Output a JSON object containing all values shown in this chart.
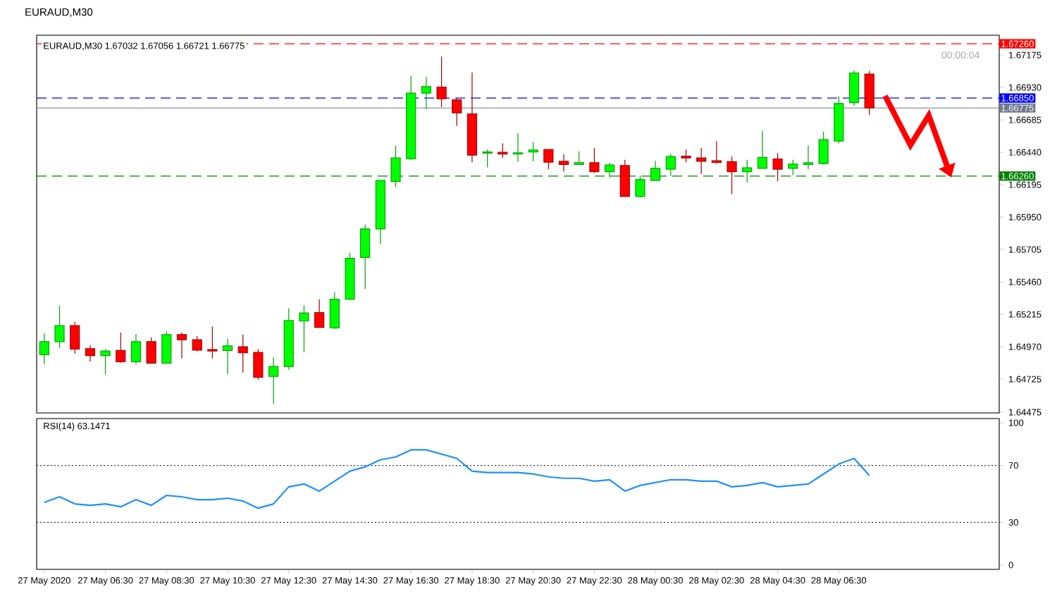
{
  "chart_data": [
    {
      "type": "candlestick",
      "title": "EURAUD,M30",
      "subtitle": "EURAUD,M30  1.67032 1.67056 1.66721 1.66775",
      "annotations": [
        "00:00:04"
      ],
      "categories": [
        null,
        null,
        null,
        null,
        null,
        null,
        null,
        null,
        null,
        null,
        null,
        null,
        null,
        null,
        null,
        null,
        null,
        null,
        null,
        null,
        null,
        null,
        null,
        null,
        null,
        null,
        null,
        null,
        null,
        null,
        null,
        null,
        null,
        null,
        null,
        null,
        null,
        null,
        null,
        null,
        null,
        null,
        null,
        null,
        null,
        null,
        null,
        null,
        null,
        null,
        null,
        null,
        null,
        null,
        null,
        null,
        null,
        null,
        null,
        null,
        null,
        null,
        null
      ],
      "ohlc": [
        [
          1.6491,
          1.6507,
          1.64839,
          1.65009
        ],
        [
          1.65009,
          1.65279,
          1.64963,
          1.6513
        ],
        [
          1.6513,
          1.65158,
          1.64917,
          1.64952
        ],
        [
          1.64956,
          1.64981,
          1.64857,
          1.64903
        ],
        [
          1.64903,
          1.64952,
          1.64761,
          1.64938
        ],
        [
          1.64942,
          1.65077,
          1.64849,
          1.64857
        ],
        [
          1.64857,
          1.65066,
          1.64839,
          1.65009
        ],
        [
          1.65009,
          1.65041,
          1.64846,
          1.64846
        ],
        [
          1.64846,
          1.65087,
          1.64846,
          1.65062
        ],
        [
          1.65062,
          1.65077,
          1.64881,
          1.65023
        ],
        [
          1.65023,
          1.65052,
          1.64935,
          1.64945
        ],
        [
          1.64949,
          1.65123,
          1.64881,
          1.64938
        ],
        [
          1.64942,
          1.6503,
          1.64761,
          1.64977
        ],
        [
          1.6497,
          1.65062,
          1.64775,
          1.64924
        ],
        [
          1.64928,
          1.64952,
          1.64722,
          1.64739
        ],
        [
          1.64746,
          1.64892,
          1.64537,
          1.64821
        ],
        [
          1.64821,
          1.65261,
          1.64796,
          1.65169
        ],
        [
          1.65165,
          1.65283,
          1.64928,
          1.65226
        ],
        [
          1.65229,
          1.65329,
          1.65116,
          1.65116
        ],
        [
          1.65112,
          1.65382,
          1.65105,
          1.65329
        ],
        [
          1.65329,
          1.6568,
          1.65325,
          1.65638
        ],
        [
          1.65645,
          1.65893,
          1.65407,
          1.65861
        ],
        [
          1.65861,
          1.66227,
          1.65744,
          1.66227
        ],
        [
          1.6622,
          1.6649,
          1.66177,
          1.66397
        ],
        [
          1.6639,
          1.67018,
          1.66383,
          1.66887
        ],
        [
          1.66887,
          1.67011,
          1.66766,
          1.66937
        ],
        [
          1.66933,
          1.67164,
          1.66781,
          1.66845
        ],
        [
          1.66837,
          1.66845,
          1.66639,
          1.66738
        ],
        [
          1.66731,
          1.67043,
          1.66365,
          1.66419
        ],
        [
          1.66433,
          1.66461,
          1.66326,
          1.66443
        ],
        [
          1.6644,
          1.66507,
          1.66397,
          1.66426
        ],
        [
          1.66426,
          1.66585,
          1.66369,
          1.66436
        ],
        [
          1.66443,
          1.66518,
          1.66372,
          1.66458
        ],
        [
          1.66461,
          1.66461,
          1.66312,
          1.66365
        ],
        [
          1.66372,
          1.66426,
          1.66294,
          1.66348
        ],
        [
          1.66348,
          1.66447,
          1.66348,
          1.66362
        ],
        [
          1.66362,
          1.66472,
          1.66284,
          1.66294
        ],
        [
          1.66294,
          1.66362,
          1.66248,
          1.66344
        ],
        [
          1.6634,
          1.66383,
          1.66106,
          1.66106
        ],
        [
          1.66106,
          1.66259,
          1.66099,
          1.66234
        ],
        [
          1.66227,
          1.66376,
          1.66223,
          1.66319
        ],
        [
          1.66312,
          1.66429,
          1.66259,
          1.66408
        ],
        [
          1.66411,
          1.66461,
          1.66365,
          1.66397
        ],
        [
          1.66397,
          1.66472,
          1.66277,
          1.66372
        ],
        [
          1.66376,
          1.66525,
          1.66355,
          1.66362
        ],
        [
          1.66369,
          1.66408,
          1.66124,
          1.66294
        ],
        [
          1.66294,
          1.66383,
          1.66213,
          1.66323
        ],
        [
          1.66319,
          1.66603,
          1.66319,
          1.66401
        ],
        [
          1.6639,
          1.66436,
          1.66223,
          1.66312
        ],
        [
          1.66319,
          1.66383,
          1.66266,
          1.66351
        ],
        [
          1.66348,
          1.6649,
          1.66312,
          1.66362
        ],
        [
          1.66355,
          1.66596,
          1.66348,
          1.66536
        ],
        [
          1.66525,
          1.66862,
          1.66507,
          1.66809
        ],
        [
          1.66816,
          1.67058,
          1.66791,
          1.6704
        ],
        [
          1.67032,
          1.67056,
          1.66721,
          1.66775
        ],
        null,
        null,
        null,
        null,
        null,
        null,
        null,
        null
      ],
      "colors": [
        "#00ff00",
        "#00ff00",
        "#ff0000",
        "#ff0000",
        "#00ff00",
        "#ff0000",
        "#00ff00",
        "#ff0000",
        "#00ff00",
        "#ff0000",
        "#ff0000",
        "#ff0000",
        "#00ff00",
        "#ff0000",
        "#ff0000",
        "#00ff00",
        "#00ff00",
        "#00ff00",
        "#ff0000",
        "#00ff00",
        "#00ff00",
        "#00ff00",
        "#00ff00",
        "#00ff00",
        "#00ff00",
        "#00ff00",
        "#ff0000",
        "#ff0000",
        "#ff0000",
        "#00ff00",
        "#ff0000",
        "#00ff00",
        "#00ff00",
        "#ff0000",
        "#ff0000",
        "#00ff00",
        "#ff0000",
        "#00ff00",
        "#ff0000",
        "#00ff00",
        "#00ff00",
        "#00ff00",
        "#ff0000",
        "#ff0000",
        "#ff0000",
        "#ff0000",
        "#00ff00",
        "#00ff00",
        "#ff0000",
        "#00ff00",
        "#00ff00",
        "#00ff00",
        "#00ff00",
        "#00ff00",
        "#ff0000",
        null,
        null,
        null,
        null,
        null,
        null,
        null,
        null
      ],
      "ylim": [
        1.6447,
        1.67325
      ],
      "yticks": [
        1.67175,
        {
          "value": 1.6693,
          "label": "1.66930"
        },
        1.66685,
        {
          "value": 1.6644,
          "label": "1.66440"
        },
        1.66195,
        {
          "value": 1.6595,
          "label": "1.65950"
        },
        1.65705,
        {
          "value": 1.6546,
          "label": "1.65460"
        },
        1.65215,
        {
          "value": 1.6497,
          "label": "1.64970"
        },
        1.64725,
        1.64475
      ],
      "ref_lines": [
        {
          "axis": "y",
          "value": 1.6726,
          "label": "1.67260",
          "color": "#ff0000",
          "line_style": "dashed"
        },
        {
          "axis": "y",
          "value": 1.6685,
          "label": "1.66850",
          "color": "#0000ff",
          "line_style": "dashed"
        },
        {
          "axis": "y",
          "value": 1.66775,
          "label": "1.66775",
          "color": "#707a8c",
          "line_style": "solid"
        },
        {
          "axis": "y",
          "value": 1.6626,
          "label": "1.66260",
          "color": "#008000",
          "line_style": "dashed"
        }
      ],
      "tick_labels": "y"
    },
    {
      "type": "line",
      "title": "RSI(14) 63.1471",
      "categories": [
        "27 May 2020",
        null,
        null,
        null,
        "27 May 06:30",
        null,
        null,
        null,
        "27 May 08:30",
        null,
        null,
        null,
        "27 May 10:30",
        null,
        null,
        null,
        "27 May 12:30",
        null,
        null,
        null,
        "27 May 14:30",
        null,
        null,
        null,
        "27 May 16:30",
        null,
        null,
        null,
        "27 May 18:30",
        null,
        null,
        null,
        "27 May 20:30",
        null,
        null,
        null,
        "27 May 22:30",
        null,
        null,
        null,
        "28 May 00:30",
        null,
        null,
        null,
        "28 May 02:30",
        null,
        null,
        null,
        "28 May 04:30",
        null,
        null,
        null,
        "28 May 06:30",
        null,
        null,
        null,
        null,
        null,
        null,
        null,
        null,
        null,
        null
      ],
      "values": [
        44,
        48,
        43,
        42,
        43,
        41,
        46,
        42,
        49,
        48,
        46,
        46,
        47,
        45,
        40,
        43,
        55,
        57,
        52,
        59,
        66,
        69,
        74,
        76,
        81,
        81,
        78,
        75,
        66,
        65,
        65,
        65,
        64,
        62,
        61,
        61,
        59,
        60,
        52,
        56,
        58,
        60,
        60,
        59,
        59,
        55,
        56,
        58,
        55,
        56,
        57,
        64,
        71,
        75,
        63,
        null,
        null,
        null,
        null,
        null,
        null,
        null,
        null
      ],
      "color": "#1e90ff",
      "ylim": [
        -3,
        103
      ],
      "yticks": [
        0,
        30,
        70,
        100
      ],
      "ref_lines": [
        {
          "axis": "y",
          "value": 30,
          "color": "#333333",
          "line_style": "dotted"
        },
        {
          "axis": "y",
          "value": 70,
          "color": "#333333",
          "line_style": "dotted"
        }
      ]
    }
  ]
}
